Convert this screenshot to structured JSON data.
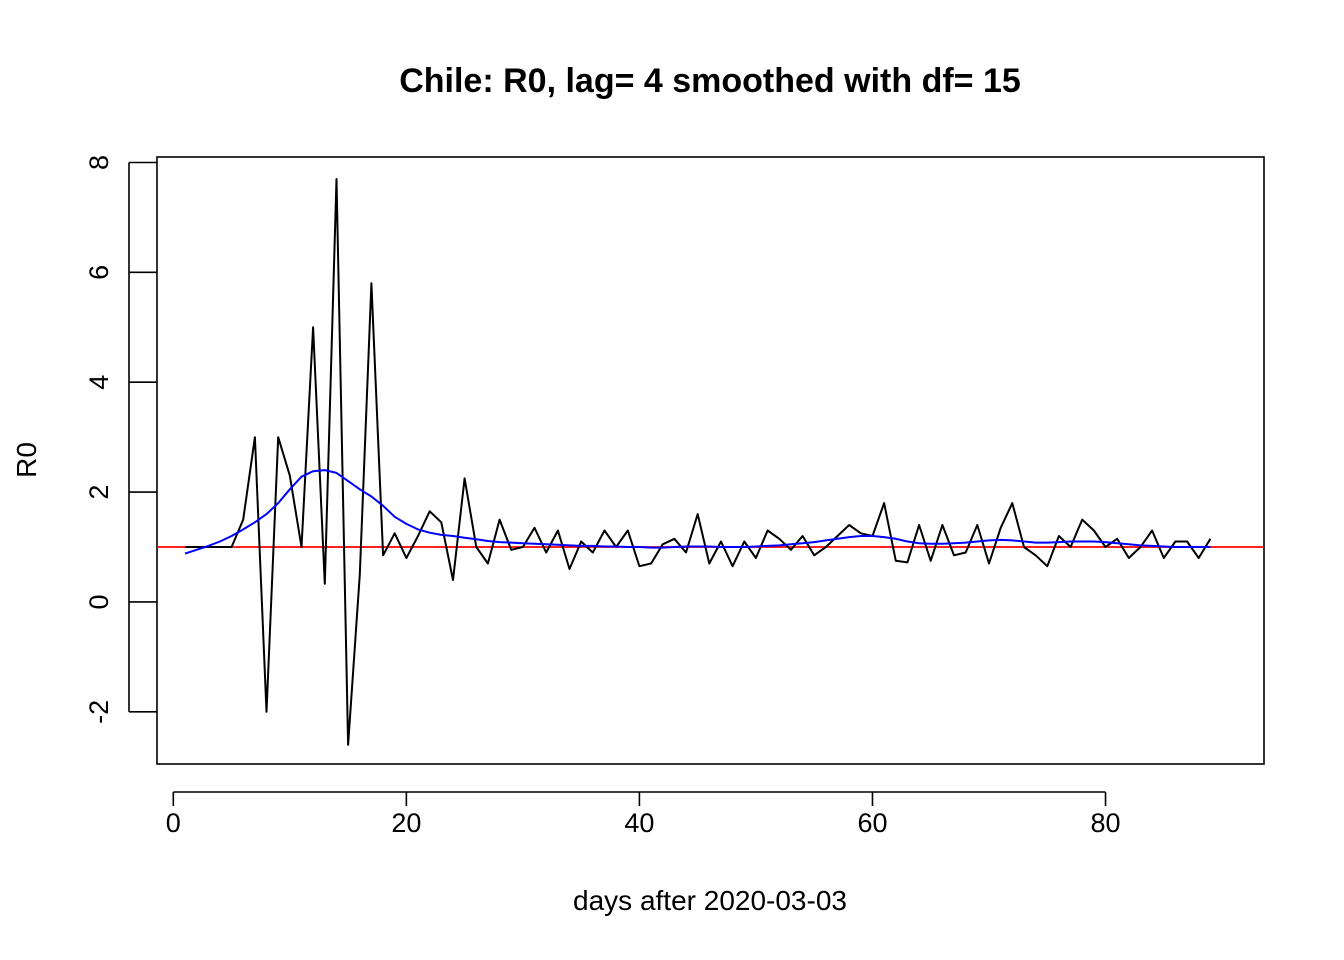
{
  "chart_data": {
    "type": "line",
    "title": "Chile: R0, lag= 4  smoothed with df= 15",
    "xlabel": "days after 2020-03-03",
    "ylabel": "R0",
    "xlim": [
      -1.4,
      93.6
    ],
    "ylim": [
      -2.95,
      8.1
    ],
    "x_ticks": [
      0,
      20,
      40,
      60,
      80
    ],
    "y_ticks": [
      -2,
      0,
      2,
      4,
      6,
      8
    ],
    "x_tick_labels": [
      "0",
      "20",
      "40",
      "60",
      "80"
    ],
    "y_tick_labels": [
      "-2",
      "0",
      "2",
      "4",
      "6",
      "8"
    ],
    "grid": false,
    "legend": "none",
    "reference_line": {
      "y": 1,
      "color": "#ff0000"
    },
    "series": [
      {
        "color": "#000000",
        "x": [
          1,
          2,
          3,
          4,
          5,
          6,
          7,
          8,
          9,
          10,
          11,
          12,
          13,
          14,
          15,
          16,
          17,
          18,
          19,
          20,
          21,
          22,
          23,
          24,
          25,
          26,
          27,
          28,
          29,
          30,
          31,
          32,
          33,
          34,
          35,
          36,
          37,
          38,
          39,
          40,
          41,
          42,
          43,
          44,
          45,
          46,
          47,
          48,
          49,
          50,
          51,
          52,
          53,
          54,
          55,
          56,
          57,
          58,
          59,
          60,
          61,
          62,
          63,
          64,
          65,
          66,
          67,
          68,
          69,
          70,
          71,
          72,
          73,
          74,
          75,
          76,
          77,
          78,
          79,
          80,
          81,
          82,
          83,
          84,
          85,
          86,
          87,
          88,
          89
        ],
        "y": [
          1.0,
          1.0,
          1.0,
          1.0,
          1.0,
          1.5,
          3.0,
          -2.0,
          3.0,
          2.3,
          1.0,
          5.0,
          0.33,
          7.7,
          -2.6,
          0.5,
          5.8,
          0.85,
          1.25,
          0.8,
          1.2,
          1.65,
          1.45,
          0.4,
          2.25,
          1.0,
          0.7,
          1.5,
          0.95,
          1.0,
          1.35,
          0.9,
          1.3,
          0.6,
          1.1,
          0.9,
          1.3,
          1.0,
          1.3,
          0.65,
          0.7,
          1.05,
          1.15,
          0.9,
          1.6,
          0.7,
          1.1,
          0.65,
          1.1,
          0.8,
          1.3,
          1.15,
          0.95,
          1.2,
          0.85,
          1.0,
          1.2,
          1.4,
          1.25,
          1.2,
          1.8,
          0.75,
          0.72,
          1.4,
          0.75,
          1.4,
          0.85,
          0.9,
          1.4,
          0.7,
          1.35,
          1.8,
          1.0,
          0.85,
          0.65,
          1.2,
          1.0,
          1.5,
          1.3,
          1.0,
          1.15,
          0.8,
          1.0,
          1.3,
          0.8,
          1.1,
          1.1,
          0.8,
          1.15
        ]
      },
      {
        "color": "#0000ff",
        "x": [
          1,
          2,
          3,
          4,
          5,
          6,
          7,
          8,
          9,
          10,
          11,
          12,
          13,
          14,
          15,
          16,
          17,
          18,
          19,
          20,
          21,
          22,
          23,
          24,
          25,
          26,
          27,
          28,
          29,
          30,
          31,
          32,
          33,
          34,
          35,
          36,
          37,
          38,
          39,
          40,
          41,
          42,
          43,
          44,
          45,
          46,
          47,
          48,
          49,
          50,
          51,
          52,
          53,
          54,
          55,
          56,
          57,
          58,
          59,
          60,
          61,
          62,
          63,
          64,
          65,
          66,
          67,
          68,
          69,
          70,
          71,
          72,
          73,
          74,
          75,
          76,
          77,
          78,
          79,
          80,
          81,
          82,
          83,
          84,
          85,
          86,
          87,
          88,
          89
        ],
        "y": [
          0.88,
          0.95,
          1.02,
          1.1,
          1.2,
          1.32,
          1.45,
          1.6,
          1.8,
          2.05,
          2.28,
          2.38,
          2.4,
          2.35,
          2.2,
          2.05,
          1.92,
          1.75,
          1.55,
          1.42,
          1.32,
          1.26,
          1.22,
          1.2,
          1.17,
          1.14,
          1.11,
          1.09,
          1.08,
          1.07,
          1.06,
          1.05,
          1.04,
          1.03,
          1.02,
          1.02,
          1.01,
          1.01,
          1.0,
          1.0,
          0.99,
          0.99,
          1.0,
          1.01,
          1.01,
          1.01,
          1.0,
          1.0,
          1.0,
          1.01,
          1.02,
          1.03,
          1.05,
          1.07,
          1.09,
          1.12,
          1.15,
          1.18,
          1.2,
          1.2,
          1.18,
          1.15,
          1.1,
          1.07,
          1.06,
          1.06,
          1.07,
          1.08,
          1.1,
          1.12,
          1.13,
          1.12,
          1.1,
          1.08,
          1.08,
          1.09,
          1.1,
          1.1,
          1.1,
          1.09,
          1.07,
          1.05,
          1.03,
          1.02,
          1.01,
          1.0,
          1.0,
          1.0,
          1.0
        ]
      }
    ]
  }
}
